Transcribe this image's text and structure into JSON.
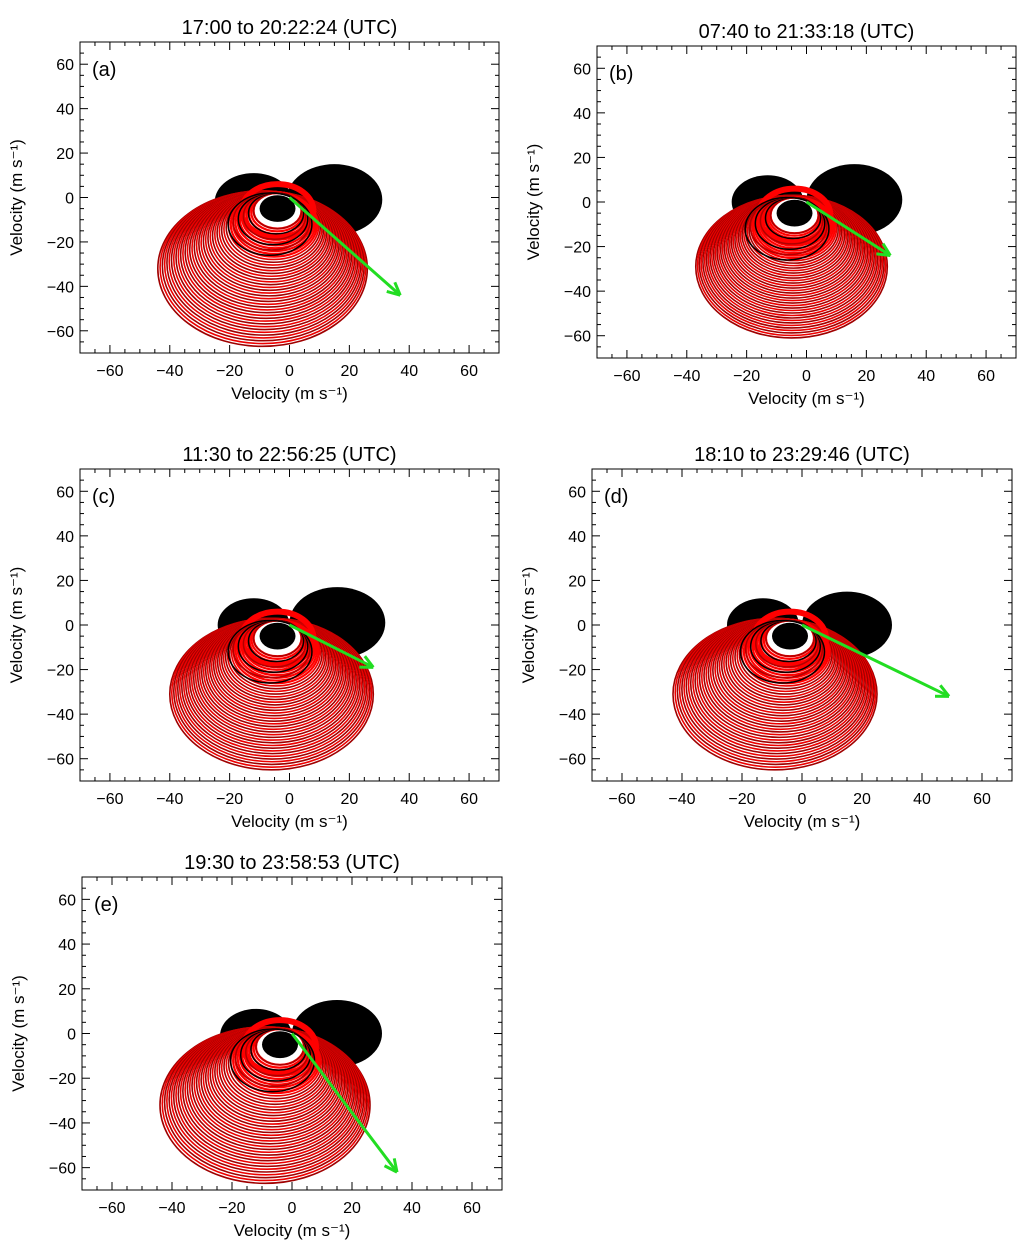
{
  "chart_data": [
    {
      "type": "scatter",
      "label": "(a)",
      "title": "17:00 to 20:22:24 (UTC)",
      "xlabel": "Velocity (m s-1)",
      "ylabel": "Velocity (m s-1)",
      "xlim": [
        -70,
        70
      ],
      "ylim": [
        -70,
        70
      ],
      "xticks": [
        -60,
        -40,
        -20,
        0,
        20,
        40,
        60
      ],
      "yticks": [
        -60,
        -40,
        -20,
        0,
        20,
        40,
        60
      ],
      "lobes": [
        {
          "cx": -12,
          "cy": -2,
          "r": 13
        },
        {
          "cx": 15,
          "cy": -1,
          "r": 16
        }
      ],
      "rings": {
        "inner": {
          "cx": -4,
          "cy": -6,
          "r": 8
        },
        "outer": {
          "cx": -9,
          "cy": -32,
          "r": 35
        }
      },
      "core": {
        "cx": -4,
        "cy": -5,
        "r": 6
      },
      "arrow": {
        "x": 37,
        "y": -44
      },
      "arrow_color": "#22dd22"
    },
    {
      "type": "scatter",
      "label": "(b)",
      "title": "07:40 to 21:33:18 (UTC)",
      "xlabel": "Velocity (m s-1)",
      "ylabel": "Velocity (m s-1)",
      "xlim": [
        -70,
        70
      ],
      "ylim": [
        -70,
        70
      ],
      "xticks": [
        -60,
        -40,
        -20,
        0,
        20,
        40,
        60
      ],
      "yticks": [
        -60,
        -40,
        -20,
        0,
        20,
        40,
        60
      ],
      "lobes": [
        {
          "cx": -13,
          "cy": 0,
          "r": 12
        },
        {
          "cx": 16,
          "cy": 1,
          "r": 16
        }
      ],
      "rings": {
        "inner": {
          "cx": -4,
          "cy": -6,
          "r": 8
        },
        "outer": {
          "cx": -5,
          "cy": -29,
          "r": 32
        }
      },
      "core": {
        "cx": -4,
        "cy": -5,
        "r": 6
      },
      "arrow": {
        "x": 28,
        "y": -24
      },
      "arrow_color": "#22dd22"
    },
    {
      "type": "scatter",
      "label": "(c)",
      "title": "11:30 to 22:56:25 (UTC)",
      "xlabel": "Velocity (m s-1)",
      "ylabel": "Velocity (m s-1)",
      "xlim": [
        -70,
        70
      ],
      "ylim": [
        -70,
        70
      ],
      "xticks": [
        -60,
        -40,
        -20,
        0,
        20,
        40,
        60
      ],
      "yticks": [
        -60,
        -40,
        -20,
        0,
        20,
        40,
        60
      ],
      "lobes": [
        {
          "cx": -12,
          "cy": 0,
          "r": 12
        },
        {
          "cx": 16,
          "cy": 1,
          "r": 16
        }
      ],
      "rings": {
        "inner": {
          "cx": -4,
          "cy": -6,
          "r": 8
        },
        "outer": {
          "cx": -6,
          "cy": -31,
          "r": 34
        }
      },
      "core": {
        "cx": -4,
        "cy": -5,
        "r": 6
      },
      "arrow": {
        "x": 28,
        "y": -19
      },
      "arrow_color": "#22dd22"
    },
    {
      "type": "scatter",
      "label": "(d)",
      "title": "18:10 to 23:29:46 (UTC)",
      "xlabel": "Velocity (m s-1)",
      "ylabel": "Velocity (m s-1)",
      "xlim": [
        -70,
        70
      ],
      "ylim": [
        -70,
        70
      ],
      "xticks": [
        -60,
        -40,
        -20,
        0,
        20,
        40,
        60
      ],
      "yticks": [
        -60,
        -40,
        -20,
        0,
        20,
        40,
        60
      ],
      "lobes": [
        {
          "cx": -13,
          "cy": 0,
          "r": 12
        },
        {
          "cx": 15,
          "cy": 0,
          "r": 15
        }
      ],
      "rings": {
        "inner": {
          "cx": -4,
          "cy": -6,
          "r": 8
        },
        "outer": {
          "cx": -9,
          "cy": -31,
          "r": 34
        }
      },
      "core": {
        "cx": -4,
        "cy": -5,
        "r": 6
      },
      "arrow": {
        "x": 49,
        "y": -32
      },
      "arrow_color": "#22dd22"
    },
    {
      "type": "scatter",
      "label": "(e)",
      "title": "19:30 to 23:58:53 (UTC)",
      "xlabel": "Velocity (m s-1)",
      "ylabel": "Velocity (m s-1)",
      "xlim": [
        -70,
        70
      ],
      "ylim": [
        -70,
        70
      ],
      "xticks": [
        -60,
        -40,
        -20,
        0,
        20,
        40,
        60
      ],
      "yticks": [
        -60,
        -40,
        -20,
        0,
        20,
        40,
        60
      ],
      "lobes": [
        {
          "cx": -12,
          "cy": -1,
          "r": 12
        },
        {
          "cx": 15,
          "cy": 0,
          "r": 15
        }
      ],
      "rings": {
        "inner": {
          "cx": -4,
          "cy": -6,
          "r": 8
        },
        "outer": {
          "cx": -9,
          "cy": -32,
          "r": 35
        }
      },
      "core": {
        "cx": -4,
        "cy": -5,
        "r": 6
      },
      "arrow": {
        "x": 35,
        "y": -62
      },
      "arrow_color": "#22dd22"
    }
  ]
}
